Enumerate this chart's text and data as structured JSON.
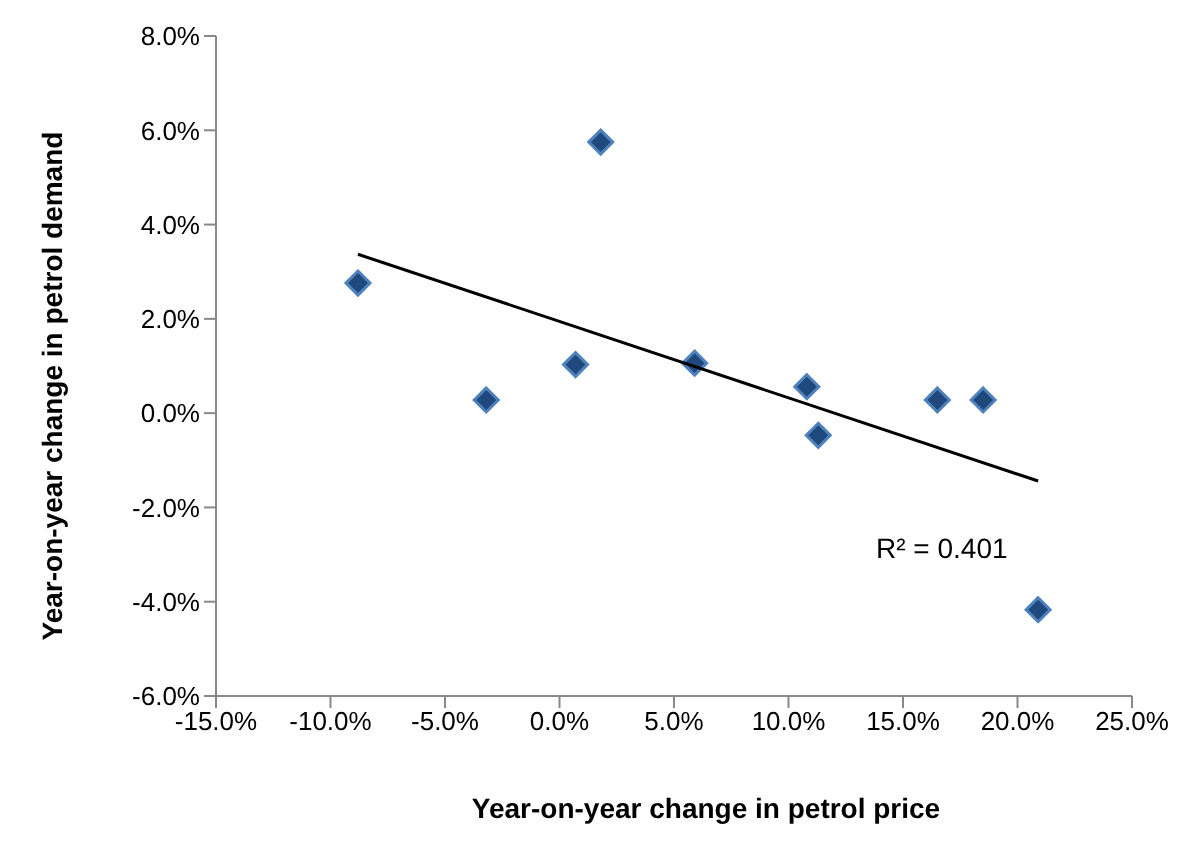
{
  "chart_data": {
    "type": "scatter",
    "xlabel": "Year-on-year change in petrol price",
    "ylabel": "Year-on-year change in petrol demand",
    "annotations": [
      "R² = 0.401"
    ],
    "xlim": [
      -15,
      25
    ],
    "ylim": [
      -6,
      8
    ],
    "xticks": [
      {
        "value": -15,
        "label": "-15.0%"
      },
      {
        "value": -10,
        "label": "-10.0%"
      },
      {
        "value": -5,
        "label": "-5.0%"
      },
      {
        "value": 0,
        "label": "0.0%"
      },
      {
        "value": 5,
        "label": "5.0%"
      },
      {
        "value": 10,
        "label": "10.0%"
      },
      {
        "value": 15,
        "label": "15.0%"
      },
      {
        "value": 20,
        "label": "20.0%"
      },
      {
        "value": 25,
        "label": "25.0%"
      }
    ],
    "yticks": [
      {
        "value": -6,
        "label": "-6.0%"
      },
      {
        "value": -4,
        "label": "-4.0%"
      },
      {
        "value": -2,
        "label": "-2.0%"
      },
      {
        "value": 0,
        "label": "0.0%"
      },
      {
        "value": 2,
        "label": "2.0%"
      },
      {
        "value": 4,
        "label": "4.0%"
      },
      {
        "value": 6,
        "label": "6.0%"
      },
      {
        "value": 8,
        "label": "8.0%"
      }
    ],
    "grid": false,
    "legend": false,
    "series": [
      {
        "color": "#1f497d",
        "marker": "diamond",
        "x": [
          -8.8,
          1.8,
          -3.2,
          0.7,
          5.9,
          10.8,
          11.3,
          16.5,
          18.5,
          20.9
        ],
        "values": [
          2.76,
          5.75,
          0.28,
          1.03,
          1.06,
          0.56,
          -0.47,
          0.28,
          0.28,
          -4.17
        ]
      },
      {
        "type": "line",
        "color": "#000000",
        "marker": "none",
        "x": [
          -8.8,
          20.9
        ],
        "values": [
          3.37,
          -1.44
        ]
      }
    ]
  }
}
